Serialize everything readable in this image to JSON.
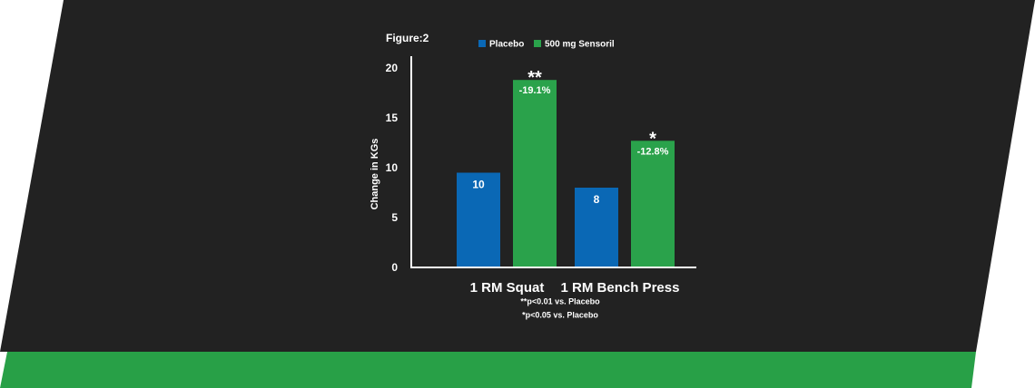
{
  "colors": {
    "panel": "#222222",
    "stripe": "#28a047",
    "placebo": "#0a68b5",
    "sensoril": "#2aa24b",
    "text": "#ffffff"
  },
  "figure_label": "Figure:2",
  "footnotes": [
    "**p<0.01 vs. Placebo",
    "*p<0.05 vs. Placebo"
  ],
  "chart_data": {
    "type": "bar",
    "title": "",
    "xlabel": "",
    "ylabel": "Change in KGs",
    "ylim": [
      0,
      21
    ],
    "yticks": [
      "0",
      "5",
      "10",
      "15",
      "20"
    ],
    "categories": [
      "1 RM Squat",
      "1 RM Bench Press"
    ],
    "legend_position": "top",
    "series": [
      {
        "name": "Placebo",
        "color": "#0a68b5",
        "values": [
          9.5,
          8
        ],
        "data_labels": [
          "10",
          "8"
        ],
        "significance": [
          "",
          ""
        ]
      },
      {
        "name": "500 mg Sensoril",
        "color": "#2aa24b",
        "values": [
          18.8,
          12.7
        ],
        "data_labels": [
          "-19.1%",
          "-12.8%"
        ],
        "significance": [
          "**",
          "*"
        ]
      }
    ]
  }
}
